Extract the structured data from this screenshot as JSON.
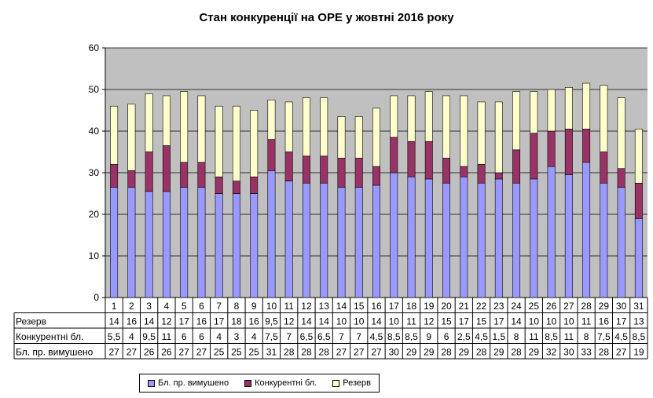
{
  "chart_data": {
    "type": "bar",
    "stacked": true,
    "title": "Стан конкуренції на ОРЕ  у жовтні 2016 року",
    "xlabel": "",
    "ylabel": "",
    "ylim": [
      0,
      60
    ],
    "yticks": [
      "0",
      "10",
      "20",
      "30",
      "40",
      "50",
      "60"
    ],
    "grid": true,
    "legend_position": "bottom",
    "categories": [
      "1",
      "2",
      "3",
      "4",
      "5",
      "6",
      "7",
      "8",
      "9",
      "10",
      "11",
      "12",
      "13",
      "14",
      "15",
      "16",
      "17",
      "18",
      "19",
      "20",
      "21",
      "22",
      "23",
      "24",
      "25",
      "26",
      "27",
      "28",
      "29",
      "30",
      "31"
    ],
    "series": [
      {
        "name": "Бл. пр. вимушено",
        "color": "#9999ff",
        "values": [
          26.5,
          26.5,
          25.5,
          25.5,
          26.5,
          26.5,
          25,
          25,
          25,
          30.5,
          28,
          27.5,
          27.5,
          26.5,
          26.5,
          27,
          30,
          29,
          28.5,
          27.5,
          29,
          27.5,
          28.5,
          27.5,
          28.5,
          31.5,
          29.5,
          32.5,
          27.5,
          26.5,
          19
        ],
        "labels": [
          "27",
          "27",
          "26",
          "26",
          "27",
          "27",
          "25",
          "25",
          "25",
          "31",
          "28",
          "28",
          "28",
          "27",
          "27",
          "27",
          "30",
          "29",
          "29",
          "28",
          "29",
          "28",
          "29",
          "28",
          "29",
          "32",
          "30",
          "33",
          "28",
          "27",
          "19"
        ]
      },
      {
        "name": "Конкурентні бл.",
        "color": "#993366",
        "values": [
          5.5,
          4,
          9.5,
          11,
          6,
          6,
          4,
          3,
          4,
          7.5,
          7,
          6.5,
          6.5,
          7,
          7,
          4.5,
          8.5,
          8.5,
          9,
          6,
          2.5,
          4.5,
          1.5,
          8,
          11,
          8.5,
          11,
          8,
          7.5,
          4.5,
          8.5
        ],
        "labels": [
          "5,5",
          "4",
          "9,5",
          "11",
          "6",
          "6",
          "4",
          "3",
          "4",
          "7,5",
          "7",
          "6,5",
          "6,5",
          "7",
          "7",
          "4,5",
          "8,5",
          "8,5",
          "9",
          "6",
          "2,5",
          "4,5",
          "1,5",
          "8",
          "11",
          "8,5",
          "11",
          "8",
          "7,5",
          "4,5",
          "8,5"
        ]
      },
      {
        "name": "Резерв",
        "color": "#ffffcc",
        "values": [
          14,
          16,
          14,
          12,
          17,
          16,
          17,
          18,
          16,
          9.5,
          12,
          14,
          14,
          10,
          10,
          14,
          10,
          11,
          12,
          15,
          17,
          15,
          17,
          14,
          10,
          10,
          10,
          11,
          16,
          17,
          13
        ],
        "labels": [
          "14",
          "16",
          "14",
          "12",
          "17",
          "16",
          "17",
          "18",
          "16",
          "9,5",
          "12",
          "14",
          "14",
          "10",
          "10",
          "14",
          "10",
          "11",
          "12",
          "15",
          "17",
          "15",
          "17",
          "14",
          "10",
          "10",
          "10",
          "11",
          "16",
          "17",
          "13"
        ]
      }
    ],
    "table_row_order": [
      "Резерв",
      "Конкурентні бл.",
      "Бл. пр. вимушено"
    ]
  },
  "legend": [
    {
      "label": "Бл. пр. вимушено",
      "color": "#9999ff"
    },
    {
      "label": "Конкурентні бл.",
      "color": "#993366"
    },
    {
      "label": "Резерв",
      "color": "#ffffcc"
    }
  ]
}
